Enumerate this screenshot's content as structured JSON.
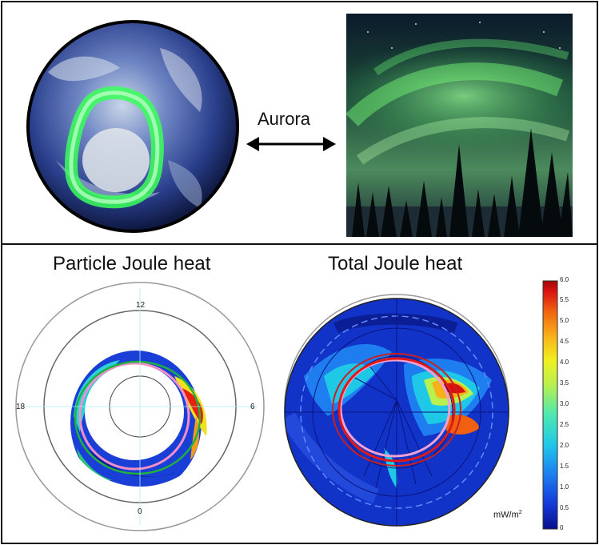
{
  "top": {
    "aurora_label": "Aurora"
  },
  "plots": {
    "particle_title": "Particle Joule heat",
    "total_title": "Total Joule heat",
    "mlt_labels": {
      "top": "12",
      "bottom": "0",
      "left": "18",
      "right": "6"
    }
  },
  "colorbar": {
    "ticks": [
      "6.0",
      "5.5",
      "5.0",
      "4.5",
      "4.0",
      "3.5",
      "3.0",
      "2.5",
      "2.0",
      "1.5",
      "1.0",
      "0.5",
      "0"
    ],
    "unit": "mW/m",
    "unit_sup": "2",
    "range": [
      0,
      6.0
    ],
    "colors": [
      "#0a0f8c",
      "#1438d8",
      "#1e7ef0",
      "#20c8e8",
      "#4de8b0",
      "#b8f050",
      "#f0f020",
      "#f8b018",
      "#f06010",
      "#d81010",
      "#a00808"
    ]
  }
}
